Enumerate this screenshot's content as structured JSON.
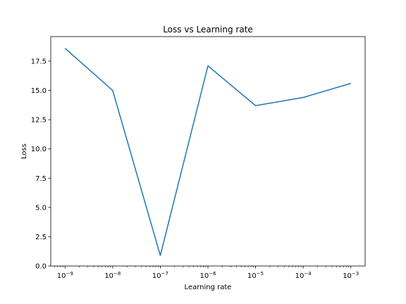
{
  "chart_data": {
    "type": "line",
    "title": "Loss vs Learning rate",
    "xlabel": "Learning rate",
    "ylabel": "Loss",
    "xscale": "log",
    "x": [
      1e-09,
      1e-08,
      1e-07,
      1e-06,
      1e-05,
      0.0001,
      0.001
    ],
    "series": [
      {
        "name": "loss",
        "color": "#1f77b4",
        "values": [
          18.6,
          15.0,
          0.9,
          17.1,
          13.7,
          14.4,
          15.6
        ]
      }
    ],
    "xticks": [
      {
        "exp": -9,
        "base": "10",
        "sup": "−9"
      },
      {
        "exp": -8,
        "base": "10",
        "sup": "−8"
      },
      {
        "exp": -7,
        "base": "10",
        "sup": "−7"
      },
      {
        "exp": -6,
        "base": "10",
        "sup": "−6"
      },
      {
        "exp": -5,
        "base": "10",
        "sup": "−5"
      },
      {
        "exp": -4,
        "base": "10",
        "sup": "−4"
      },
      {
        "exp": -3,
        "base": "10",
        "sup": "−3"
      }
    ],
    "yticks": [
      {
        "value": 0.0,
        "label": "0.0"
      },
      {
        "value": 2.5,
        "label": "2.5"
      },
      {
        "value": 5.0,
        "label": "5.0"
      },
      {
        "value": 7.5,
        "label": "7.5"
      },
      {
        "value": 10.0,
        "label": "10.0"
      },
      {
        "value": 12.5,
        "label": "12.5"
      },
      {
        "value": 15.0,
        "label": "15.0"
      },
      {
        "value": 17.5,
        "label": "17.5"
      }
    ],
    "xlim_exp": [
      -9.3,
      -2.7
    ],
    "ylim": [
      -0.0,
      19.6
    ],
    "grid": false,
    "legend": "none"
  }
}
